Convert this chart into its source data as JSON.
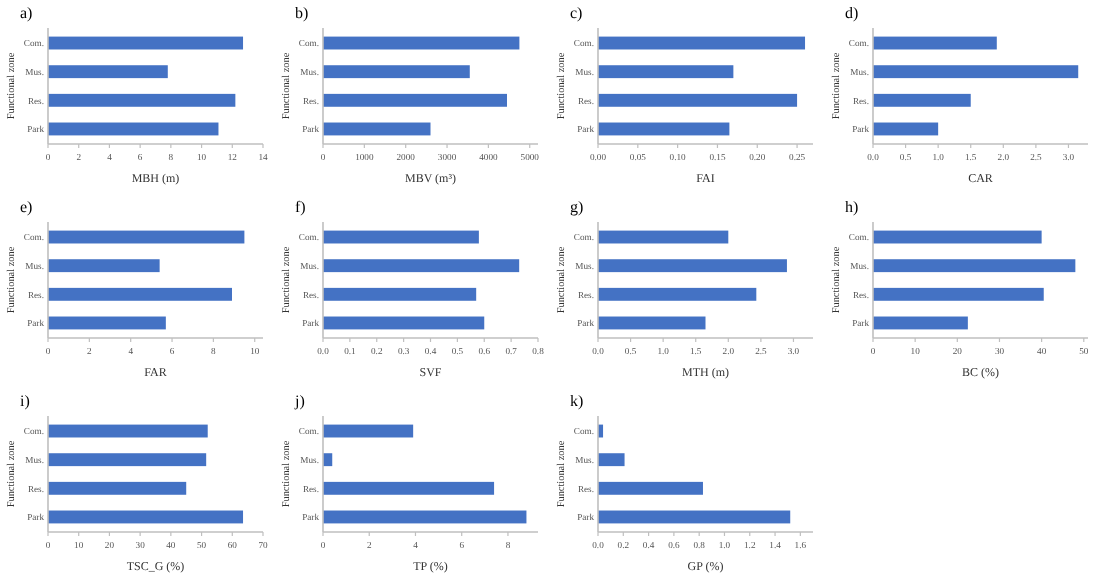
{
  "chart_data": [
    {
      "type": "bar",
      "orientation": "horizontal",
      "title": "a)",
      "xlabel": "MBH (m)",
      "ylabel": "Functional zone",
      "categories": [
        "Com.",
        "Mus.",
        "Res.",
        "Park"
      ],
      "values": [
        12.7,
        7.8,
        12.2,
        11.1
      ],
      "color": "#4472c4",
      "xlim": [
        0,
        14
      ],
      "xticks": [
        0,
        2,
        4,
        6,
        8,
        10,
        12,
        14
      ]
    },
    {
      "type": "bar",
      "orientation": "horizontal",
      "title": "b)",
      "xlabel": "MBV (m³)",
      "ylabel": "Functional zone",
      "categories": [
        "Com.",
        "Mus.",
        "Res.",
        "Park"
      ],
      "values": [
        4750,
        3550,
        4450,
        2600
      ],
      "color": "#4472c4",
      "xlim": [
        0,
        5200
      ],
      "xticks": [
        0,
        1000,
        2000,
        3000,
        4000,
        5000
      ]
    },
    {
      "type": "bar",
      "orientation": "horizontal",
      "title": "c)",
      "xlabel": "FAI",
      "ylabel": "Functional zone",
      "categories": [
        "Com.",
        "Mus.",
        "Res.",
        "Park"
      ],
      "values": [
        0.26,
        0.17,
        0.25,
        0.165
      ],
      "color": "#4472c4",
      "xlim": [
        0,
        0.27
      ],
      "xticks": [
        {
          "value": 0,
          "label": "0.00"
        },
        0.05,
        {
          "value": 0.1,
          "label": "0.10"
        },
        0.15,
        {
          "value": 0.2,
          "label": "0.20"
        },
        0.25
      ]
    },
    {
      "type": "bar",
      "orientation": "horizontal",
      "title": "d)",
      "xlabel": "CAR",
      "ylabel": "Functional zone",
      "categories": [
        "Com.",
        "Mus.",
        "Res.",
        "Park"
      ],
      "values": [
        1.9,
        3.15,
        1.5,
        1.0
      ],
      "color": "#4472c4",
      "xlim": [
        0,
        3.3
      ],
      "xticks": [
        {
          "value": 0,
          "label": "0.0"
        },
        0.5,
        {
          "value": 1,
          "label": "1.0"
        },
        1.5,
        {
          "value": 2,
          "label": "2.0"
        },
        2.5,
        {
          "value": 3,
          "label": "3.0"
        }
      ]
    },
    {
      "type": "bar",
      "orientation": "horizontal",
      "title": "e)",
      "xlabel": "FAR",
      "ylabel": "Functional zone",
      "categories": [
        "Com.",
        "Mus.",
        "Res.",
        "Park"
      ],
      "values": [
        9.5,
        5.4,
        8.9,
        5.7
      ],
      "color": "#4472c4",
      "xlim": [
        0,
        10.4
      ],
      "xticks": [
        0,
        2,
        4,
        6,
        8,
        10
      ]
    },
    {
      "type": "bar",
      "orientation": "horizontal",
      "title": "f)",
      "xlabel": "SVF",
      "ylabel": "Functional zone",
      "categories": [
        "Com.",
        "Mus.",
        "Res.",
        "Park"
      ],
      "values": [
        0.58,
        0.73,
        0.57,
        0.6
      ],
      "color": "#4472c4",
      "xlim": [
        0,
        0.8
      ],
      "xticks": [
        {
          "value": 0,
          "label": "0.0"
        },
        0.1,
        0.2,
        0.3,
        0.4,
        0.5,
        0.6,
        0.7,
        0.8
      ]
    },
    {
      "type": "bar",
      "orientation": "horizontal",
      "title": "g)",
      "xlabel": "MTH (m)",
      "ylabel": "Functional zone",
      "categories": [
        "Com.",
        "Mus.",
        "Res.",
        "Park"
      ],
      "values": [
        2.0,
        2.9,
        2.43,
        1.65
      ],
      "color": "#4472c4",
      "xlim": [
        0,
        3.3
      ],
      "xticks": [
        {
          "value": 0,
          "label": "0.0"
        },
        0.5,
        {
          "value": 1,
          "label": "1.0"
        },
        1.5,
        {
          "value": 2,
          "label": "2.0"
        },
        2.5,
        {
          "value": 3,
          "label": "3.0"
        }
      ]
    },
    {
      "type": "bar",
      "orientation": "horizontal",
      "title": "h)",
      "xlabel": "BC (%)",
      "ylabel": "Functional zone",
      "categories": [
        "Com.",
        "Mus.",
        "Res.",
        "Park"
      ],
      "values": [
        40,
        48,
        40.5,
        22.5
      ],
      "color": "#4472c4",
      "xlim": [
        0,
        51
      ],
      "xticks": [
        0,
        10,
        20,
        30,
        40,
        50
      ]
    },
    {
      "type": "bar",
      "orientation": "horizontal",
      "title": "i)",
      "xlabel": "TSC_G (%)",
      "ylabel": "Functional zone",
      "categories": [
        "Com.",
        "Mus.",
        "Res.",
        "Park"
      ],
      "values": [
        52,
        51.5,
        45,
        63.5
      ],
      "color": "#4472c4",
      "xlim": [
        0,
        70
      ],
      "xticks": [
        0,
        10,
        20,
        30,
        40,
        50,
        60,
        70
      ]
    },
    {
      "type": "bar",
      "orientation": "horizontal",
      "title": "j)",
      "xlabel": "TP (%)",
      "ylabel": "Functional zone",
      "categories": [
        "Com.",
        "Mus.",
        "Res.",
        "Park"
      ],
      "values": [
        3.9,
        0.4,
        7.4,
        8.8
      ],
      "color": "#4472c4",
      "xlim": [
        0,
        9.3
      ],
      "xticks": [
        0,
        2,
        4,
        6,
        8
      ]
    },
    {
      "type": "bar",
      "orientation": "horizontal",
      "title": "k)",
      "xlabel": "GP (%)",
      "ylabel": "Functional zone",
      "categories": [
        "Com.",
        "Mus.",
        "Res.",
        "Park"
      ],
      "values": [
        0.04,
        0.21,
        0.83,
        1.52
      ],
      "color": "#4472c4",
      "xlim": [
        0,
        1.7
      ],
      "xticks": [
        {
          "value": 0,
          "label": "0.0"
        },
        0.2,
        0.4,
        0.6,
        0.8,
        {
          "value": 1,
          "label": "1.0"
        },
        1.2,
        1.4,
        1.6
      ]
    }
  ]
}
